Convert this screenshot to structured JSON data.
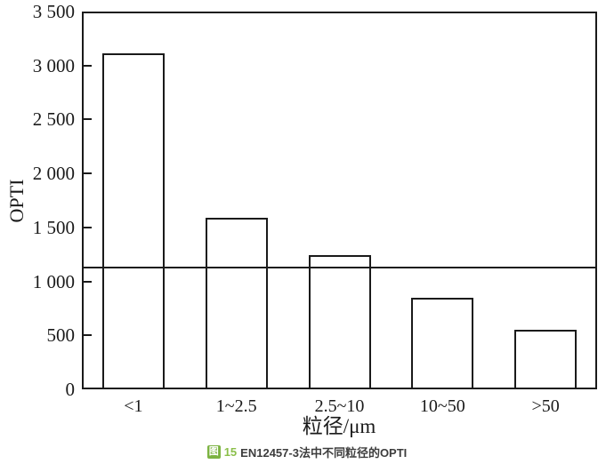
{
  "chart_data": {
    "type": "bar",
    "title": "",
    "xlabel": "粒径/μm",
    "ylabel": "OPTI",
    "categories": [
      "<1",
      "1~2.5",
      "2.5~10",
      "10~50",
      ">50"
    ],
    "values": [
      3110,
      1590,
      1240,
      850,
      550
    ],
    "ylim": [
      0,
      3500
    ],
    "ytick_step": 500,
    "ytick_labels": [
      "0",
      "500",
      "1 000",
      "1 500",
      "2 000",
      "2 500",
      "3 000",
      "3 500"
    ],
    "reference_line": 1130,
    "grid": false,
    "legend": null,
    "bar_fill": "#ffffff",
    "line_color": "#1a1a1a"
  },
  "caption": {
    "icon_glyph": "图",
    "number": "15",
    "text": "EN12457-3法中不同粒径的OPTI",
    "icon_bg": "#7cb342",
    "icon_fg": "#ffffff",
    "number_color": "#8bbf4a",
    "text_color": "#3d3d3d"
  }
}
